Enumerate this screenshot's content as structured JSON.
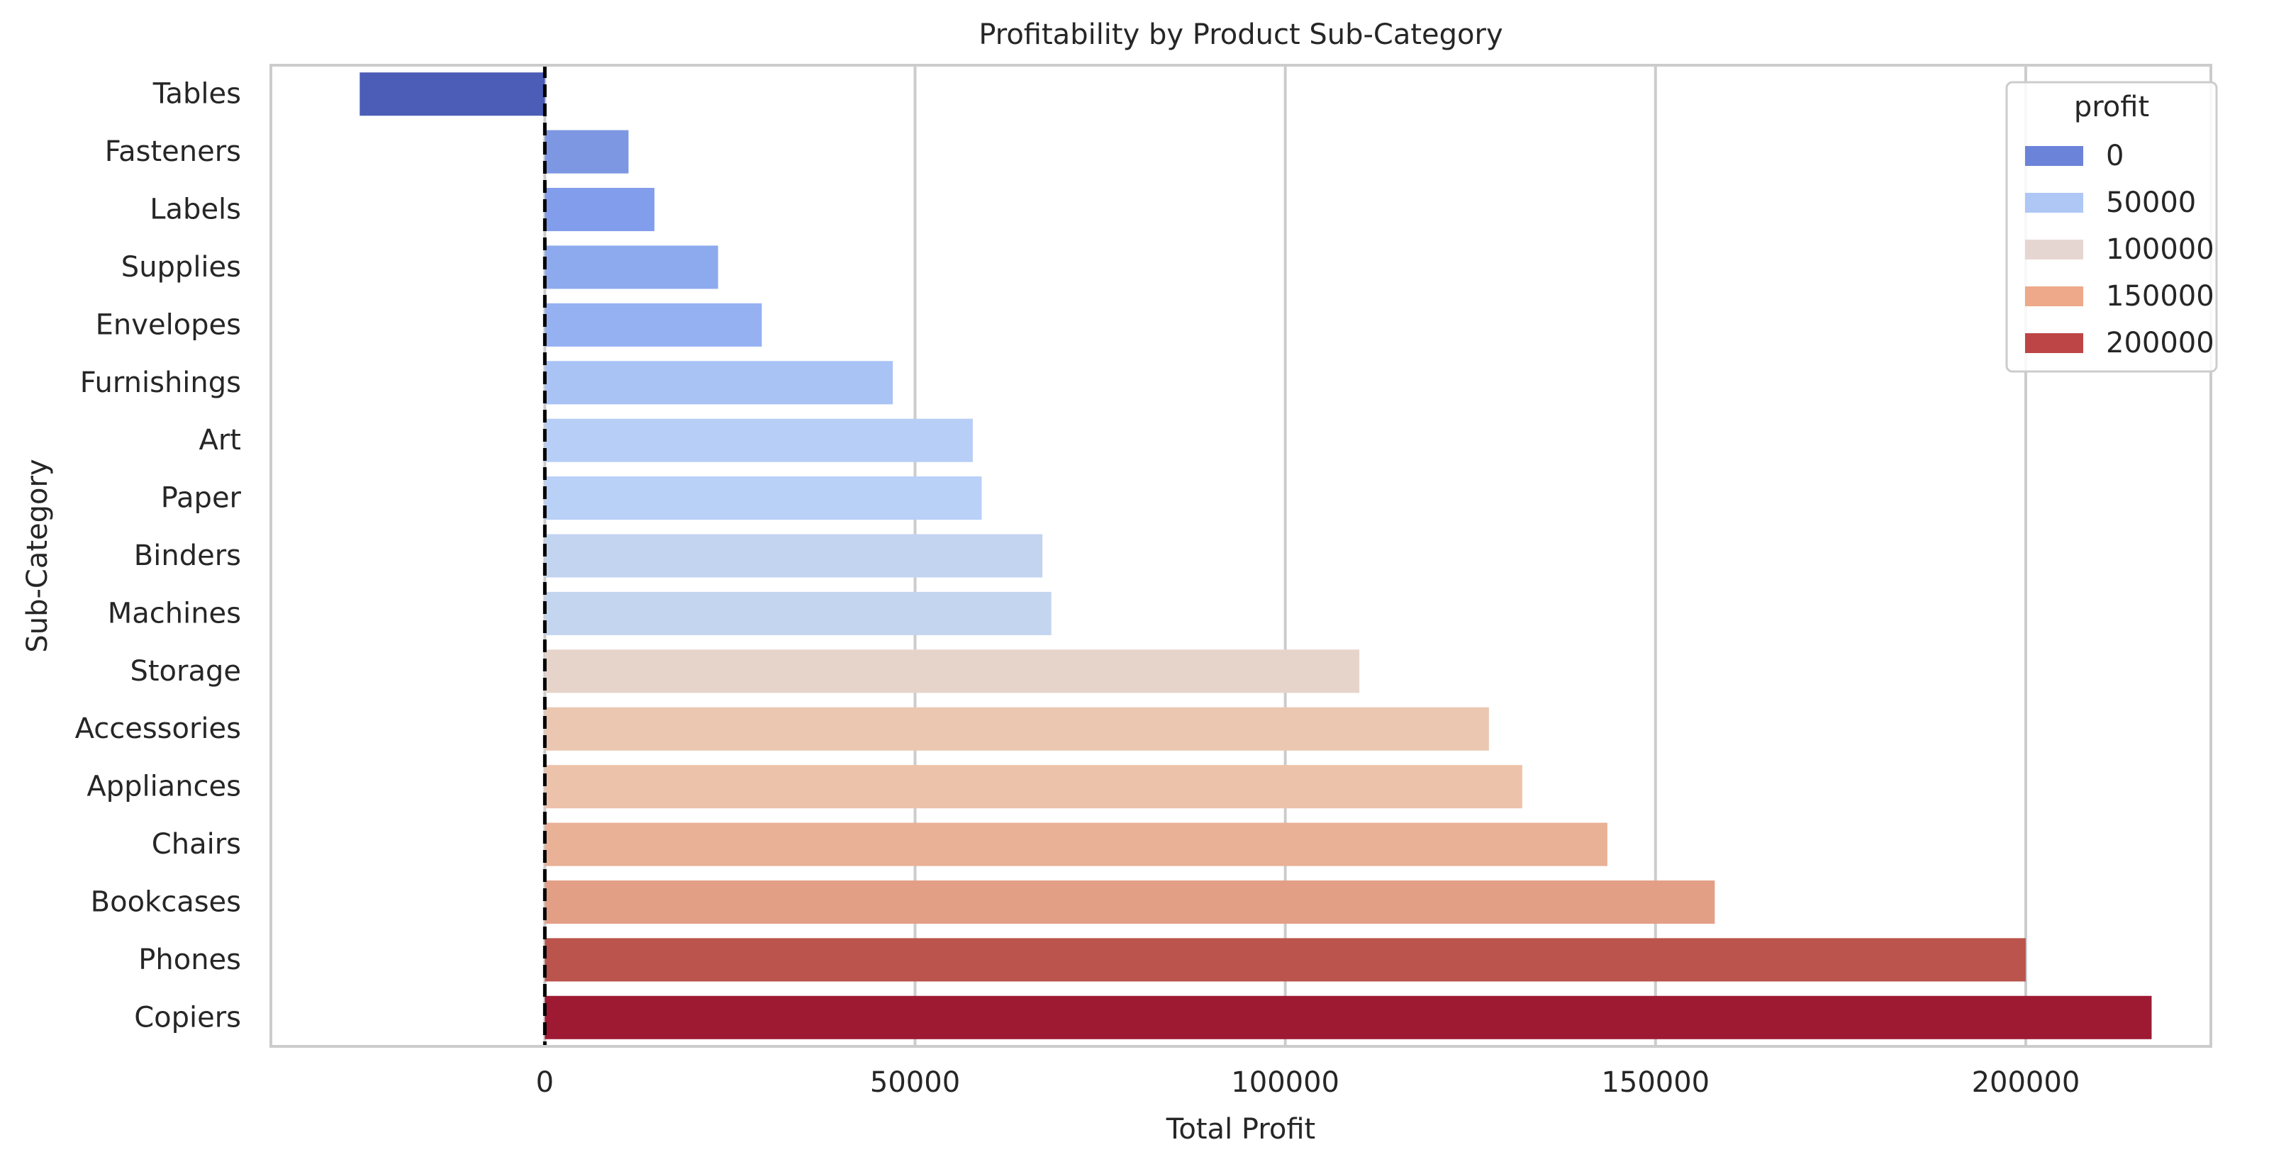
{
  "chart_data": {
    "type": "bar",
    "orientation": "horizontal",
    "title": "Profitability by Product Sub-Category",
    "xlabel": "Total Profit",
    "ylabel": "Sub-Category",
    "categories": [
      "Tables",
      "Fasteners",
      "Labels",
      "Supplies",
      "Envelopes",
      "Furnishings",
      "Art",
      "Paper",
      "Binders",
      "Machines",
      "Storage",
      "Accessories",
      "Appliances",
      "Chairs",
      "Bookcases",
      "Phones",
      "Copiers"
    ],
    "values": [
      -25000,
      11300,
      14800,
      23400,
      29300,
      47000,
      57800,
      59000,
      67200,
      68400,
      110000,
      127500,
      132000,
      143500,
      158000,
      200000,
      217000
    ],
    "bar_colors": [
      "#4b5db6",
      "#7d97e3",
      "#829deb",
      "#8eaaef",
      "#95b1f2",
      "#a9c3f5",
      "#b7cef7",
      "#b9d0f7",
      "#c3d4f1",
      "#c4d5f0",
      "#e6d4ca",
      "#ebc7b1",
      "#edc2aa",
      "#e9b196",
      "#e39f86",
      "#ba544c",
      "#9e1a33"
    ],
    "xlim": [
      -37000,
      225000
    ],
    "xticks": [
      0,
      50000,
      100000,
      150000,
      200000
    ],
    "xtick_labels": [
      "0",
      "50000",
      "100000",
      "150000",
      "200000"
    ],
    "reference_line": {
      "x": 0,
      "style": "dashed",
      "color": "#000000"
    },
    "grid": {
      "x": true,
      "y": false,
      "color": "#cccccc"
    },
    "legend": {
      "title": "profit",
      "position": "top-right",
      "entries": [
        {
          "label": "0",
          "color": "#6b83d8"
        },
        {
          "label": "50000",
          "color": "#aec7f5"
        },
        {
          "label": "100000",
          "color": "#e6d6d1"
        },
        {
          "label": "150000",
          "color": "#eda98a"
        },
        {
          "label": "200000",
          "color": "#bd4545"
        }
      ]
    }
  }
}
